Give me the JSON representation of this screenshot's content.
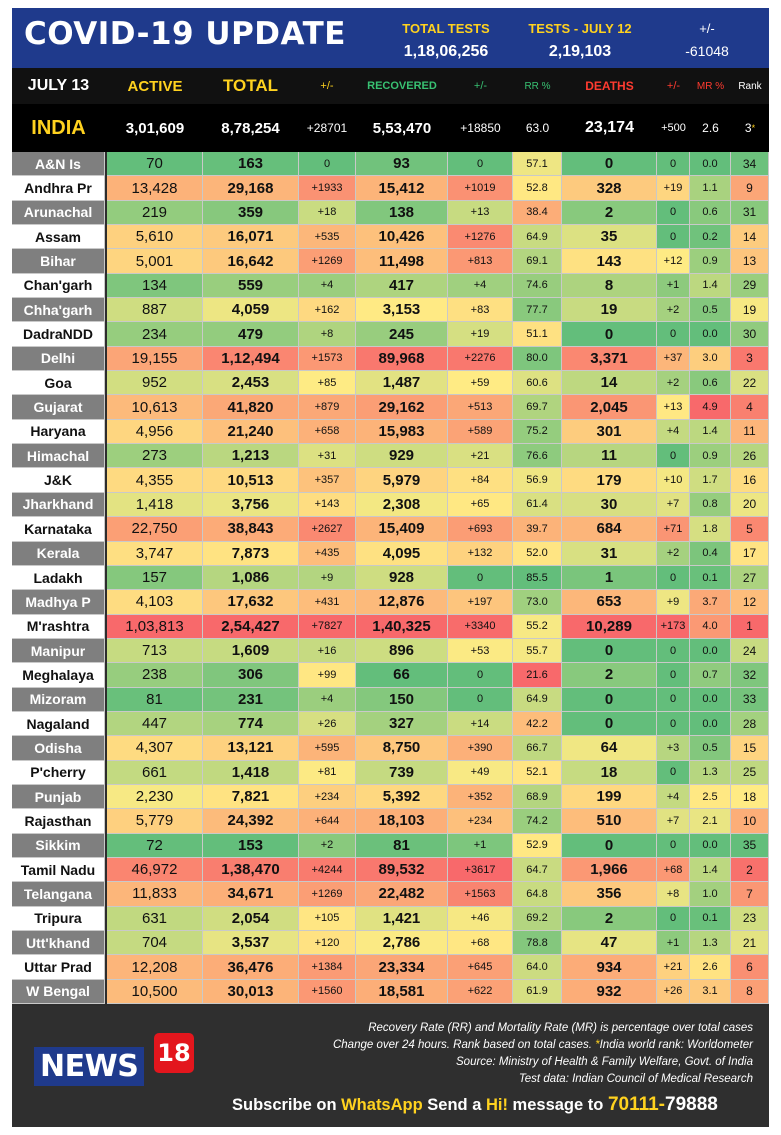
{
  "header": {
    "title": "COVID-19 UPDATE",
    "total_tests_label": "TOTAL TESTS",
    "total_tests_value": "1,18,06,256",
    "tests_july_label": "TESTS - JULY 12",
    "tests_july_value": "2,19,103",
    "change_label": "+/-",
    "change_value": "-61048"
  },
  "columns": {
    "date": "JULY 13",
    "active": "ACTIVE",
    "total": "TOTAL",
    "total_change": "+/-",
    "recovered": "RECOVERED",
    "recovered_change": "+/-",
    "rr": "RR %",
    "deaths": "DEATHS",
    "deaths_change": "+/-",
    "mr": "MR %",
    "rank": "Rank"
  },
  "india": {
    "name": "INDIA",
    "active": "3,01,609",
    "total": "8,78,254",
    "total_change": "+28701",
    "recovered": "5,53,470",
    "recovered_change": "+18850",
    "rr": "63.0",
    "deaths": "23,174",
    "deaths_change": "+500",
    "mr": "2.6",
    "rank": "3",
    "rank_mark": "*"
  },
  "colors": {
    "header_blue": "#1f3a8c",
    "accent_yellow": "#ffd21f",
    "recovered_green": "#38c172",
    "deaths_red": "#ff3b30",
    "news18_red": "#e3161d"
  },
  "states": [
    {
      "name": "A&N Is",
      "active": "70",
      "total": "163",
      "total_change": "0",
      "recovered": "93",
      "recovered_change": "0",
      "rr": "57.1",
      "deaths": "0",
      "deaths_change": "0",
      "mr": "0.0",
      "rank": "34"
    },
    {
      "name": "Andhra Pr",
      "active": "13,428",
      "total": "29,168",
      "total_change": "+1933",
      "recovered": "15,412",
      "recovered_change": "+1019",
      "rr": "52.8",
      "deaths": "328",
      "deaths_change": "+19",
      "mr": "1.1",
      "rank": "9"
    },
    {
      "name": "Arunachal",
      "active": "219",
      "total": "359",
      "total_change": "+18",
      "recovered": "138",
      "recovered_change": "+13",
      "rr": "38.4",
      "deaths": "2",
      "deaths_change": "0",
      "mr": "0.6",
      "rank": "31"
    },
    {
      "name": "Assam",
      "active": "5,610",
      "total": "16,071",
      "total_change": "+535",
      "recovered": "10,426",
      "recovered_change": "+1276",
      "rr": "64.9",
      "deaths": "35",
      "deaths_change": "0",
      "mr": "0.2",
      "rank": "14"
    },
    {
      "name": "Bihar",
      "active": "5,001",
      "total": "16,642",
      "total_change": "+1269",
      "recovered": "11,498",
      "recovered_change": "+813",
      "rr": "69.1",
      "deaths": "143",
      "deaths_change": "+12",
      "mr": "0.9",
      "rank": "13"
    },
    {
      "name": "Chan'garh",
      "active": "134",
      "total": "559",
      "total_change": "+4",
      "recovered": "417",
      "recovered_change": "+4",
      "rr": "74.6",
      "deaths": "8",
      "deaths_change": "+1",
      "mr": "1.4",
      "rank": "29"
    },
    {
      "name": "Chha'garh",
      "active": "887",
      "total": "4,059",
      "total_change": "+162",
      "recovered": "3,153",
      "recovered_change": "+83",
      "rr": "77.7",
      "deaths": "19",
      "deaths_change": "+2",
      "mr": "0.5",
      "rank": "19"
    },
    {
      "name": "DadraNDD",
      "active": "234",
      "total": "479",
      "total_change": "+8",
      "recovered": "245",
      "recovered_change": "+19",
      "rr": "51.1",
      "deaths": "0",
      "deaths_change": "0",
      "mr": "0.0",
      "rank": "30"
    },
    {
      "name": "Delhi",
      "active": "19,155",
      "total": "1,12,494",
      "total_change": "+1573",
      "recovered": "89,968",
      "recovered_change": "+2276",
      "rr": "80.0",
      "deaths": "3,371",
      "deaths_change": "+37",
      "mr": "3.0",
      "rank": "3"
    },
    {
      "name": "Goa",
      "active": "952",
      "total": "2,453",
      "total_change": "+85",
      "recovered": "1,487",
      "recovered_change": "+59",
      "rr": "60.6",
      "deaths": "14",
      "deaths_change": "+2",
      "mr": "0.6",
      "rank": "22"
    },
    {
      "name": "Gujarat",
      "active": "10,613",
      "total": "41,820",
      "total_change": "+879",
      "recovered": "29,162",
      "recovered_change": "+513",
      "rr": "69.7",
      "deaths": "2,045",
      "deaths_change": "+13",
      "mr": "4.9",
      "rank": "4"
    },
    {
      "name": "Haryana",
      "active": "4,956",
      "total": "21,240",
      "total_change": "+658",
      "recovered": "15,983",
      "recovered_change": "+589",
      "rr": "75.2",
      "deaths": "301",
      "deaths_change": "+4",
      "mr": "1.4",
      "rank": "11"
    },
    {
      "name": "Himachal",
      "active": "273",
      "total": "1,213",
      "total_change": "+31",
      "recovered": "929",
      "recovered_change": "+21",
      "rr": "76.6",
      "deaths": "11",
      "deaths_change": "0",
      "mr": "0.9",
      "rank": "26"
    },
    {
      "name": "J&K",
      "active": "4,355",
      "total": "10,513",
      "total_change": "+357",
      "recovered": "5,979",
      "recovered_change": "+84",
      "rr": "56.9",
      "deaths": "179",
      "deaths_change": "+10",
      "mr": "1.7",
      "rank": "16"
    },
    {
      "name": "Jharkhand",
      "active": "1,418",
      "total": "3,756",
      "total_change": "+143",
      "recovered": "2,308",
      "recovered_change": "+65",
      "rr": "61.4",
      "deaths": "30",
      "deaths_change": "+7",
      "mr": "0.8",
      "rank": "20"
    },
    {
      "name": "Karnataka",
      "active": "22,750",
      "total": "38,843",
      "total_change": "+2627",
      "recovered": "15,409",
      "recovered_change": "+693",
      "rr": "39.7",
      "deaths": "684",
      "deaths_change": "+71",
      "mr": "1.8",
      "rank": "5"
    },
    {
      "name": "Kerala",
      "active": "3,747",
      "total": "7,873",
      "total_change": "+435",
      "recovered": "4,095",
      "recovered_change": "+132",
      "rr": "52.0",
      "deaths": "31",
      "deaths_change": "+2",
      "mr": "0.4",
      "rank": "17"
    },
    {
      "name": "Ladakh",
      "active": "157",
      "total": "1,086",
      "total_change": "+9",
      "recovered": "928",
      "recovered_change": "0",
      "rr": "85.5",
      "deaths": "1",
      "deaths_change": "0",
      "mr": "0.1",
      "rank": "27"
    },
    {
      "name": "Madhya P",
      "active": "4,103",
      "total": "17,632",
      "total_change": "+431",
      "recovered": "12,876",
      "recovered_change": "+197",
      "rr": "73.0",
      "deaths": "653",
      "deaths_change": "+9",
      "mr": "3.7",
      "rank": "12"
    },
    {
      "name": "M'rashtra",
      "active": "1,03,813",
      "total": "2,54,427",
      "total_change": "+7827",
      "recovered": "1,40,325",
      "recovered_change": "+3340",
      "rr": "55.2",
      "deaths": "10,289",
      "deaths_change": "+173",
      "mr": "4.0",
      "rank": "1"
    },
    {
      "name": "Manipur",
      "active": "713",
      "total": "1,609",
      "total_change": "+16",
      "recovered": "896",
      "recovered_change": "+53",
      "rr": "55.7",
      "deaths": "0",
      "deaths_change": "0",
      "mr": "0.0",
      "rank": "24"
    },
    {
      "name": "Meghalaya",
      "active": "238",
      "total": "306",
      "total_change": "+99",
      "recovered": "66",
      "recovered_change": "0",
      "rr": "21.6",
      "deaths": "2",
      "deaths_change": "0",
      "mr": "0.7",
      "rank": "32"
    },
    {
      "name": "Mizoram",
      "active": "81",
      "total": "231",
      "total_change": "+4",
      "recovered": "150",
      "recovered_change": "0",
      "rr": "64.9",
      "deaths": "0",
      "deaths_change": "0",
      "mr": "0.0",
      "rank": "33"
    },
    {
      "name": "Nagaland",
      "active": "447",
      "total": "774",
      "total_change": "+26",
      "recovered": "327",
      "recovered_change": "+14",
      "rr": "42.2",
      "deaths": "0",
      "deaths_change": "0",
      "mr": "0.0",
      "rank": "28"
    },
    {
      "name": "Odisha",
      "active": "4,307",
      "total": "13,121",
      "total_change": "+595",
      "recovered": "8,750",
      "recovered_change": "+390",
      "rr": "66.7",
      "deaths": "64",
      "deaths_change": "+3",
      "mr": "0.5",
      "rank": "15"
    },
    {
      "name": "P'cherry",
      "active": "661",
      "total": "1,418",
      "total_change": "+81",
      "recovered": "739",
      "recovered_change": "+49",
      "rr": "52.1",
      "deaths": "18",
      "deaths_change": "0",
      "mr": "1.3",
      "rank": "25"
    },
    {
      "name": "Punjab",
      "active": "2,230",
      "total": "7,821",
      "total_change": "+234",
      "recovered": "5,392",
      "recovered_change": "+352",
      "rr": "68.9",
      "deaths": "199",
      "deaths_change": "+4",
      "mr": "2.5",
      "rank": "18"
    },
    {
      "name": "Rajasthan",
      "active": "5,779",
      "total": "24,392",
      "total_change": "+644",
      "recovered": "18,103",
      "recovered_change": "+234",
      "rr": "74.2",
      "deaths": "510",
      "deaths_change": "+7",
      "mr": "2.1",
      "rank": "10"
    },
    {
      "name": "Sikkim",
      "active": "72",
      "total": "153",
      "total_change": "+2",
      "recovered": "81",
      "recovered_change": "+1",
      "rr": "52.9",
      "deaths": "0",
      "deaths_change": "0",
      "mr": "0.0",
      "rank": "35"
    },
    {
      "name": "Tamil Nadu",
      "active": "46,972",
      "total": "1,38,470",
      "total_change": "+4244",
      "recovered": "89,532",
      "recovered_change": "+3617",
      "rr": "64.7",
      "deaths": "1,966",
      "deaths_change": "+68",
      "mr": "1.4",
      "rank": "2"
    },
    {
      "name": "Telangana",
      "active": "11,833",
      "total": "34,671",
      "total_change": "+1269",
      "recovered": "22,482",
      "recovered_change": "+1563",
      "rr": "64.8",
      "deaths": "356",
      "deaths_change": "+8",
      "mr": "1.0",
      "rank": "7"
    },
    {
      "name": "Tripura",
      "active": "631",
      "total": "2,054",
      "total_change": "+105",
      "recovered": "1,421",
      "recovered_change": "+46",
      "rr": "69.2",
      "deaths": "2",
      "deaths_change": "0",
      "mr": "0.1",
      "rank": "23"
    },
    {
      "name": "Utt'khand",
      "active": "704",
      "total": "3,537",
      "total_change": "+120",
      "recovered": "2,786",
      "recovered_change": "+68",
      "rr": "78.8",
      "deaths": "47",
      "deaths_change": "+1",
      "mr": "1.3",
      "rank": "21"
    },
    {
      "name": "Uttar Prad",
      "active": "12,208",
      "total": "36,476",
      "total_change": "+1384",
      "recovered": "23,334",
      "recovered_change": "+645",
      "rr": "64.0",
      "deaths": "934",
      "deaths_change": "+21",
      "mr": "2.6",
      "rank": "6"
    },
    {
      "name": "W Bengal",
      "active": "10,500",
      "total": "30,013",
      "total_change": "+1560",
      "recovered": "18,581",
      "recovered_change": "+622",
      "rr": "61.9",
      "deaths": "932",
      "deaths_change": "+26",
      "mr": "3.1",
      "rank": "8"
    }
  ],
  "footer": {
    "note_1": "Recovery Rate (RR) and Mortality Rate (MR) is percentage over total cases",
    "note_2_pre": "Change over 24 hours. Rank based on total cases.",
    "note_2_mark": "*",
    "note_2_post": "India world rank: Worldometer",
    "note_3": "Source: Ministry of Health & Family Welfare, Govt. of India",
    "note_4": "Test data: Indian Council of Medical Research",
    "logo_text": "NEWS",
    "logo_number": "18",
    "subscribe_1": "Subscribe on ",
    "subscribe_whatsapp": "WhatsApp",
    "subscribe_2": " Send a ",
    "subscribe_hi": "Hi!",
    "subscribe_3": " message to ",
    "subscribe_number_a": "70111-",
    "subscribe_number_b": "79888"
  }
}
